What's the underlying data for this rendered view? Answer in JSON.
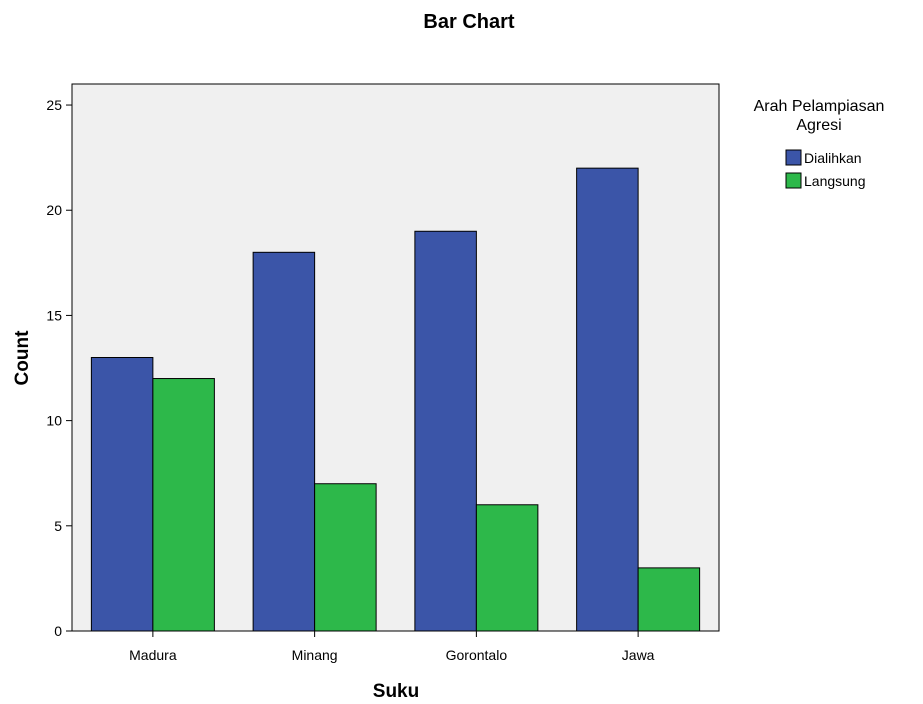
{
  "chart_data": {
    "type": "bar",
    "title": "Bar Chart",
    "xlabel": "Suku",
    "ylabel": "Count",
    "categories": [
      "Madura",
      "Minang",
      "Gorontalo",
      "Jawa"
    ],
    "series": [
      {
        "name": "Dialihkan",
        "values": [
          13,
          18,
          19,
          22
        ],
        "color": "#3b55a8"
      },
      {
        "name": "Langsung",
        "values": [
          12,
          7,
          6,
          3
        ],
        "color": "#2db84a"
      }
    ],
    "ylim": [
      0,
      26
    ],
    "yticks": [
      "0",
      "5",
      "10",
      "15",
      "20",
      "25"
    ],
    "legend_title": [
      "Arah Pelampiasan",
      "Agresi"
    ],
    "legend_position": "right",
    "plot_background": "#f0f0f0",
    "grid": false
  }
}
